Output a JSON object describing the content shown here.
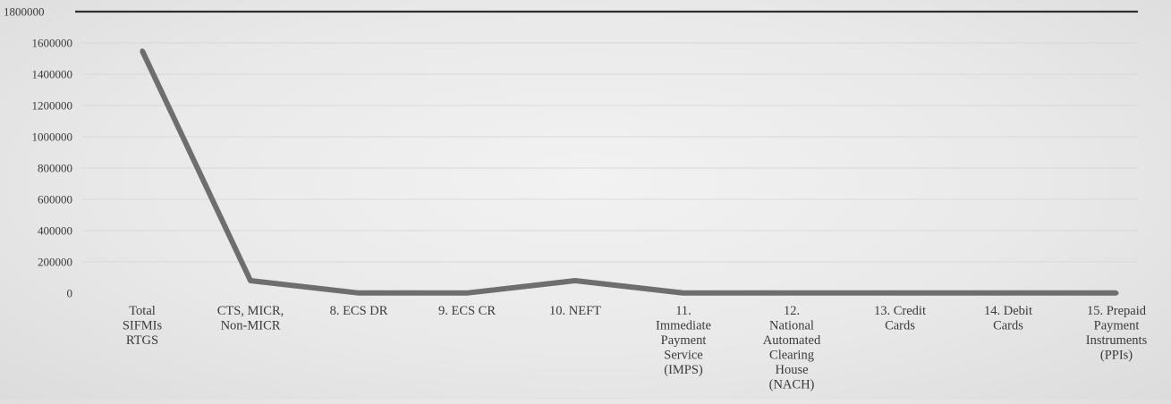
{
  "chart_data": {
    "type": "line",
    "title": "",
    "xlabel": "",
    "ylabel": "",
    "ylim": [
      0,
      1800000
    ],
    "yticks": [
      "0",
      "200000",
      "400000",
      "600000",
      "800000",
      "1000000",
      "1200000",
      "1400000",
      "1600000",
      "1800000"
    ],
    "grid": true,
    "legend": "none",
    "categories": [
      "Total SIFMIs RTGS",
      "CTS, MICR, Non-MICR",
      "8. ECS DR",
      "9. ECS CR",
      "10. NEFT",
      "11. Immediate Payment Service (IMPS)",
      "12. National Automated Clearing House (NACH)",
      "13. Credit Cards",
      "14. Debit Cards",
      "15. Prepaid Payment Instruments (PPIs)"
    ],
    "category_lines": [
      [
        "Total",
        "SIFMIs",
        "RTGS"
      ],
      [
        "CTS, MICR,",
        "Non-MICR"
      ],
      [
        "8. ECS DR"
      ],
      [
        "9. ECS CR"
      ],
      [
        "10. NEFT"
      ],
      [
        "11.",
        "Immediate",
        "Payment",
        "Service",
        "(IMPS)"
      ],
      [
        "12.",
        "National",
        "Automated",
        "Clearing",
        "House",
        "(NACH)"
      ],
      [
        "13. Credit",
        "Cards"
      ],
      [
        "14. Debit",
        "Cards"
      ],
      [
        "15. Prepaid",
        "Payment",
        "Instruments",
        "(PPIs)"
      ]
    ],
    "series": [
      {
        "values": [
          1550000,
          80000,
          1000,
          1000,
          80000,
          1000,
          1000,
          1000,
          1000,
          1000
        ]
      }
    ],
    "colors": {
      "line": "#6e6e6e",
      "top_rule": "#2e2e2e",
      "grid": "#d2d2d2",
      "text": "#3a3a3a"
    }
  }
}
